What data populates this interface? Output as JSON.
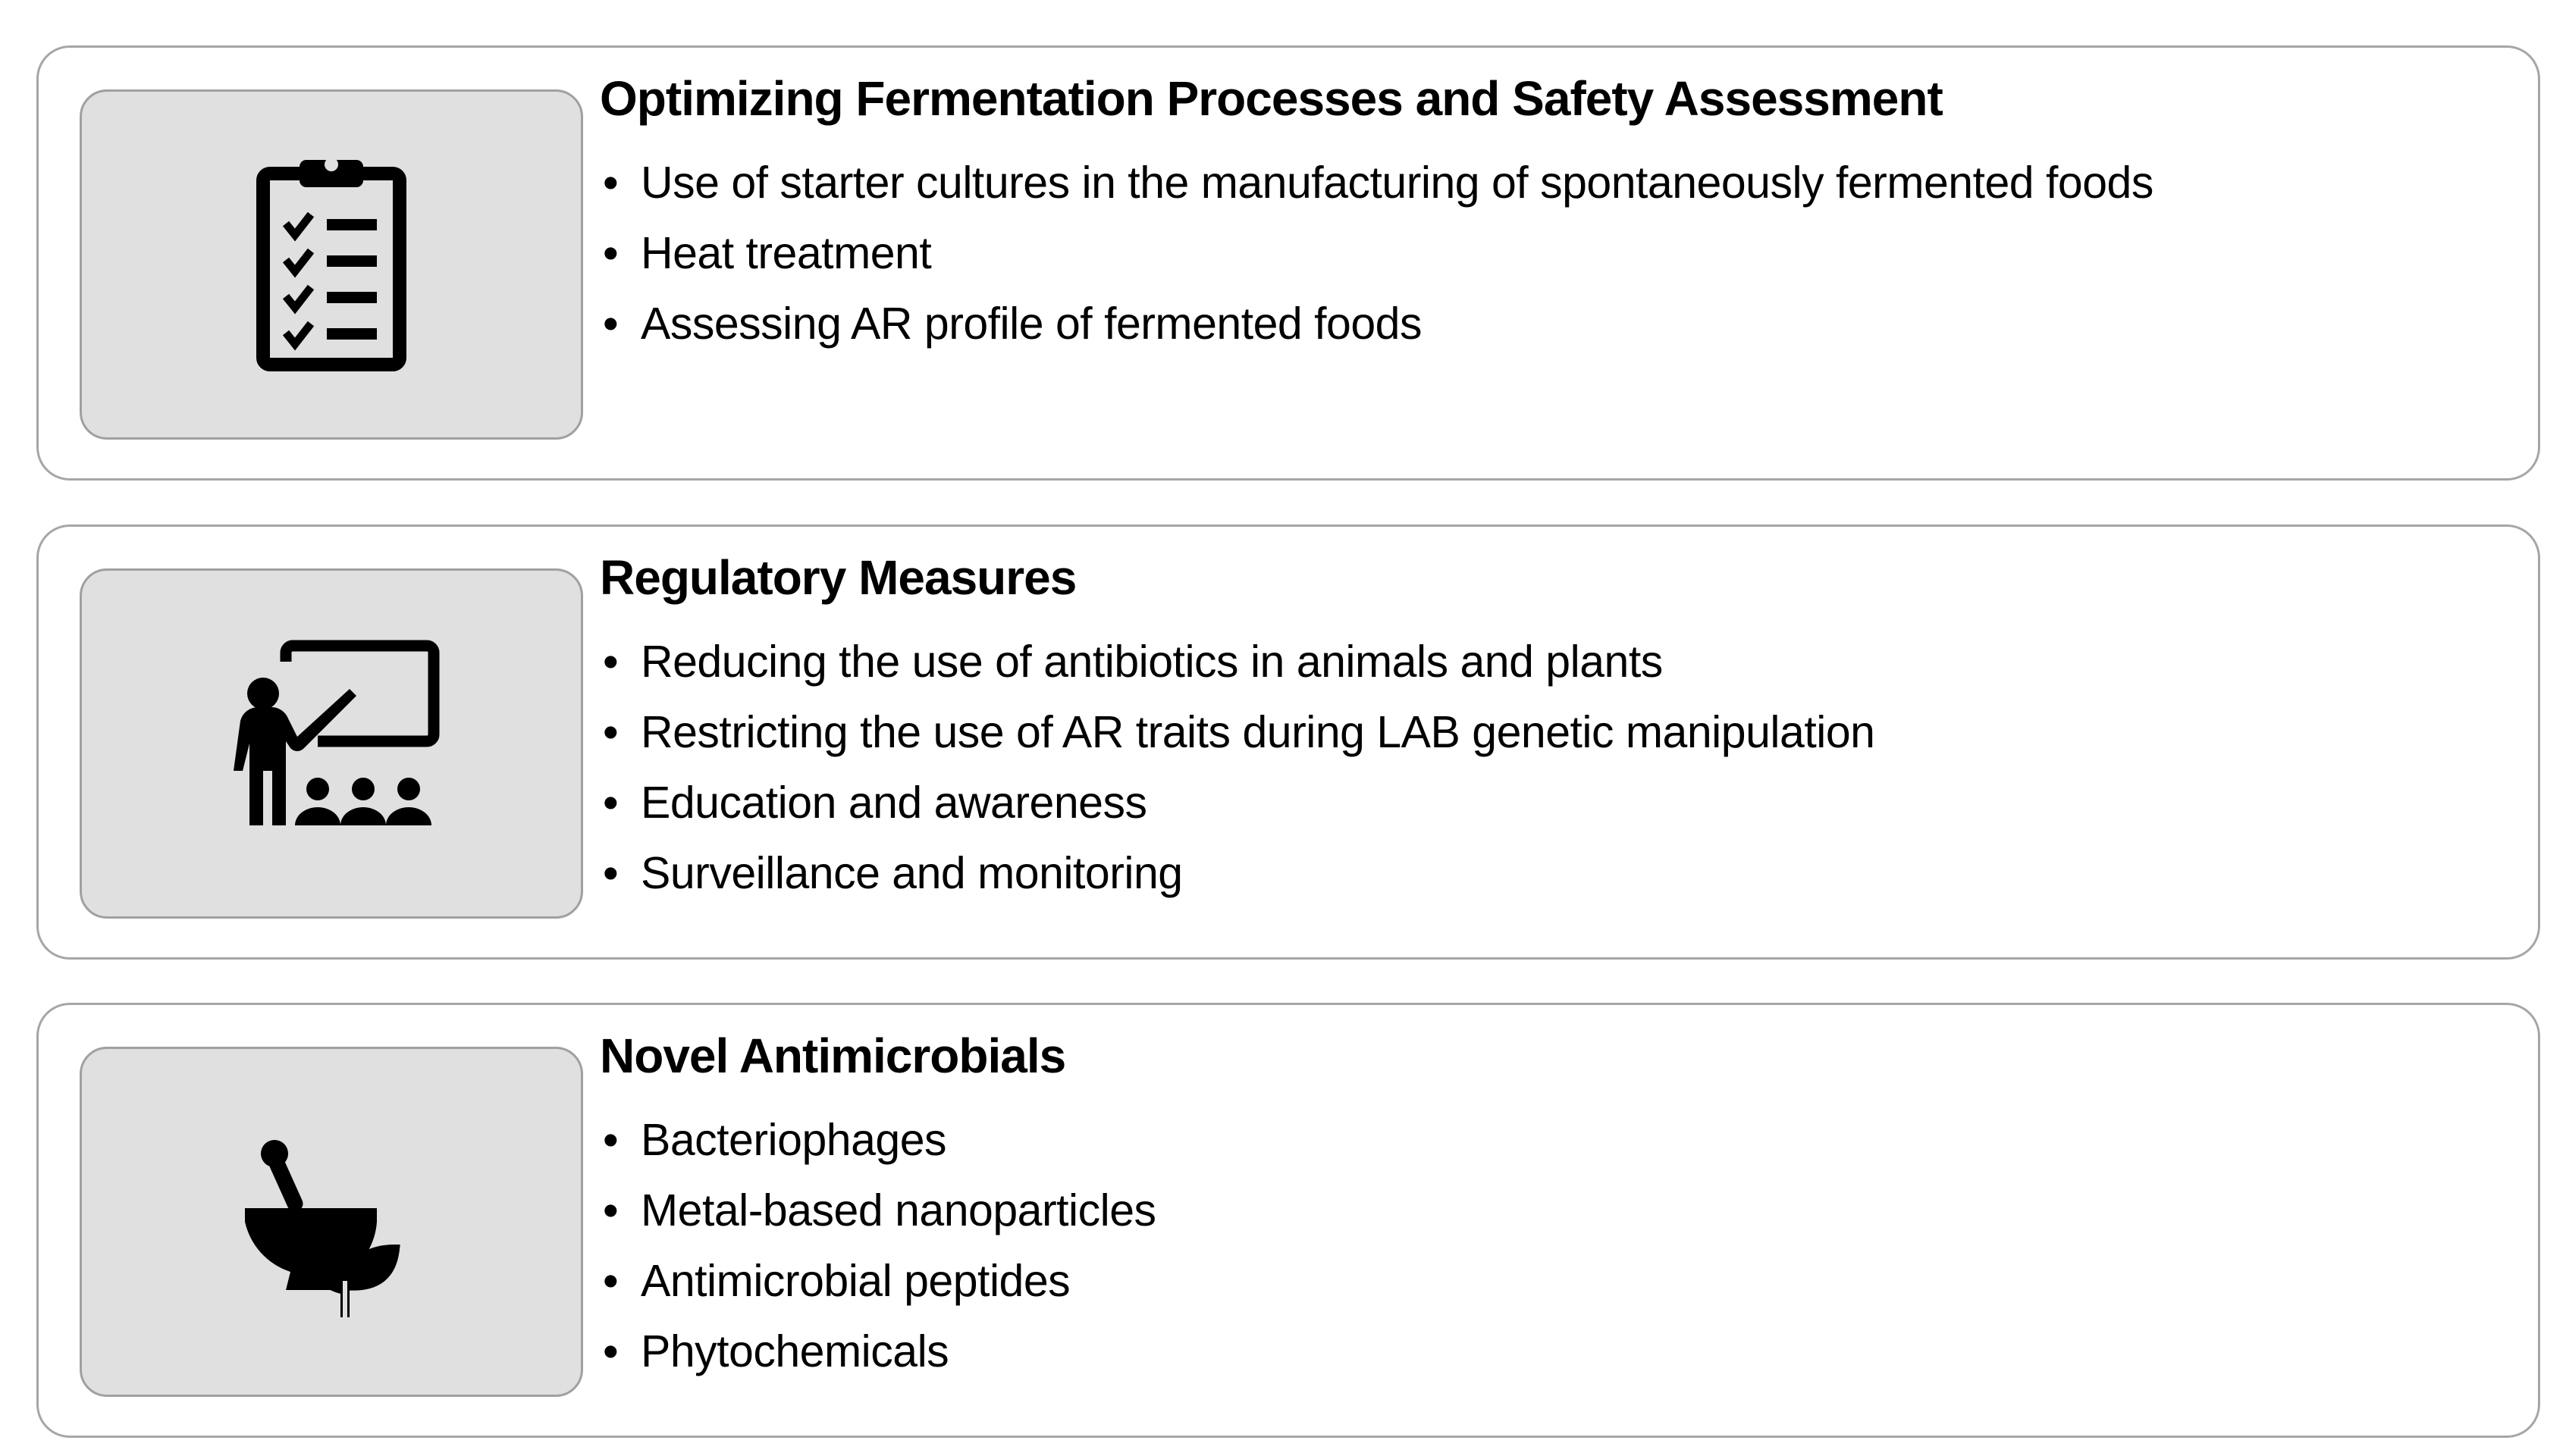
{
  "panels": [
    {
      "icon": "clipboard-checklist-icon",
      "title": "Optimizing Fermentation Processes and Safety Assessment",
      "items": [
        "Use of starter cultures in the manufacturing of spontaneously fermented foods",
        "Heat treatment",
        "Assessing AR profile of fermented foods"
      ]
    },
    {
      "icon": "teacher-presentation-icon",
      "title": "Regulatory Measures",
      "items": [
        "Reducing the use of antibiotics in animals and plants",
        "Restricting the use of AR traits during LAB genetic manipulation",
        "Education and awareness",
        "Surveillance and monitoring"
      ]
    },
    {
      "icon": "mortar-pestle-plant-icon",
      "title": "Novel Antimicrobials",
      "items": [
        "Bacteriophages",
        "Metal-based nanoparticles",
        "Antimicrobial peptides",
        "Phytochemicals"
      ]
    }
  ],
  "colors": {
    "panel_border": "#a6a6a6",
    "icon_box_fill": "#e0e0e0",
    "icon": "#000000"
  }
}
